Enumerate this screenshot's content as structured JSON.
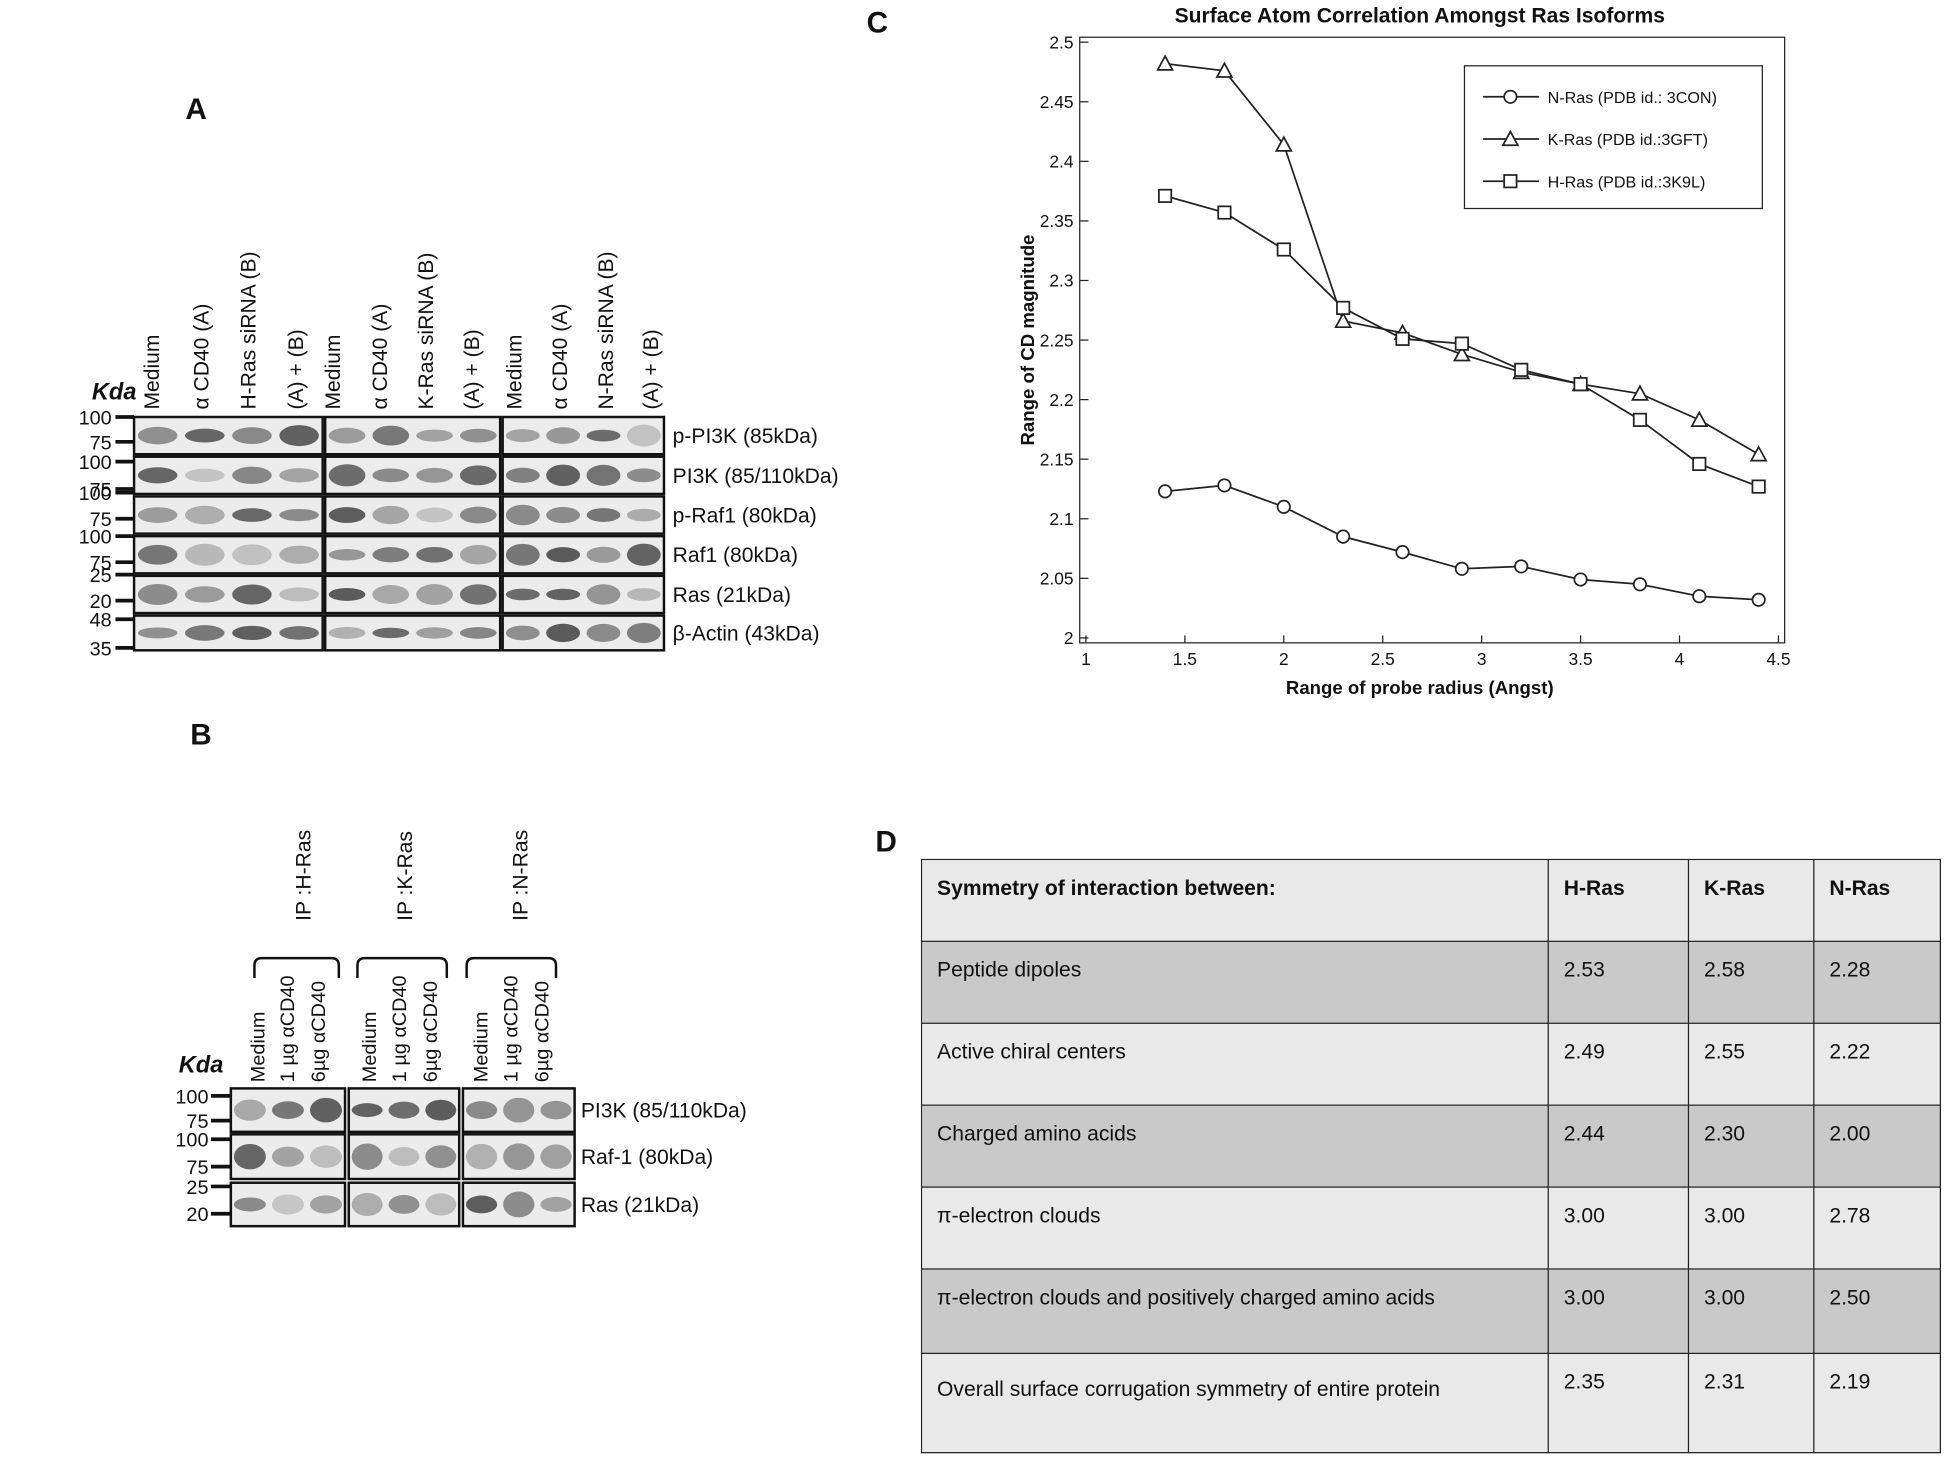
{
  "panel_a": {
    "label": "A",
    "kda": "Kda",
    "lanes": [
      "Medium",
      "α CD40 (A)",
      "H-Ras siRNA (B)",
      "(A) + (B)",
      "Medium",
      "α CD40 (A)",
      "K-Ras siRNA (B)",
      "(A) + (B)",
      "Medium",
      "α CD40 (A)",
      "N-Ras siRNA (B)",
      "(A) + (B)"
    ],
    "proteins": [
      "p-PI3K (85kDa)",
      "PI3K (85/110kDa)",
      "p-Raf1 (80kDa)",
      "Raf1 (80kDa)",
      "Ras (21kDa)",
      "β-Actin (43kDa)"
    ],
    "markers": [
      "100",
      "75",
      "100",
      "75",
      "100",
      "75",
      "100",
      "75",
      "25",
      "20",
      "48",
      "35"
    ]
  },
  "panel_b": {
    "label": "B",
    "kda": "Kda",
    "groups": [
      "IP :H-Ras",
      "IP :K-Ras",
      "IP :N-Ras"
    ],
    "lanes": [
      "Medium",
      "1 µg αCD40",
      "6µg αCD40",
      "Medium",
      "1 µg αCD40",
      "6µg αCD40",
      "Medium",
      "1 µg αCD40",
      "6µg αCD40"
    ],
    "proteins": [
      "PI3K (85/110kDa)",
      "Raf-1 (80kDa)",
      "Ras (21kDa)"
    ],
    "markers": [
      "100",
      "75",
      "100",
      "75",
      "25",
      "20"
    ]
  },
  "chart_data": {
    "type": "line",
    "panel_label": "C",
    "title": "Surface Atom Correlation Amongst Ras Isoforms",
    "xlabel": "Range of probe radius (Angst)",
    "ylabel": "Range of CD magnitude",
    "x": [
      1.4,
      1.7,
      2.0,
      2.3,
      2.6,
      2.9,
      3.2,
      3.5,
      3.8,
      4.1,
      4.4
    ],
    "series": [
      {
        "name": "N-Ras (PDB id.: 3CON)",
        "color": "#222222",
        "marker": "circle",
        "values": [
          2.123,
          2.128,
          2.11,
          2.085,
          2.072,
          2.058,
          2.06,
          2.049,
          2.045,
          2.035,
          2.032
        ]
      },
      {
        "name": "K-Ras (PDB id.:3GFT)",
        "color": "#222222",
        "marker": "triangle",
        "values": [
          2.482,
          2.476,
          2.414,
          2.266,
          2.256,
          2.238,
          2.223,
          2.213,
          2.205,
          2.183,
          2.154
        ]
      },
      {
        "name": "H-Ras (PDB id.:3K9L)",
        "color": "#222222",
        "marker": "square",
        "values": [
          2.371,
          2.357,
          2.326,
          2.277,
          2.251,
          2.247,
          2.225,
          2.213,
          2.183,
          2.146,
          2.127
        ]
      }
    ],
    "xlim": [
      1,
      4.5
    ],
    "xticks": [
      1,
      1.5,
      2,
      2.5,
      3,
      3.5,
      4,
      4.5
    ],
    "ylim": [
      2,
      2.5
    ],
    "yticks": [
      2,
      2.05,
      2.1,
      2.15,
      2.2,
      2.25,
      2.3,
      2.35,
      2.4,
      2.45,
      2.5
    ],
    "legend": "upper right",
    "grid": false
  },
  "panel_d": {
    "label": "D",
    "table": {
      "header": [
        "Symmetry of interaction between:",
        "H-Ras",
        "K-Ras",
        "N-Ras"
      ],
      "rows": [
        [
          "Peptide dipoles",
          "2.53",
          "2.58",
          "2.28"
        ],
        [
          "Active chiral centers",
          "2.49",
          "2.55",
          "2.22"
        ],
        [
          "Charged amino acids",
          "2.44",
          "2.30",
          "2.00"
        ],
        [
          "π-electron clouds",
          "3.00",
          "3.00",
          "2.78"
        ],
        [
          "π-electron clouds and positively charged amino acids",
          "3.00",
          "3.00",
          "2.50"
        ],
        [
          "Overall surface corrugation symmetry of entire protein",
          "2.35",
          "2.31",
          "2.19"
        ]
      ]
    }
  }
}
